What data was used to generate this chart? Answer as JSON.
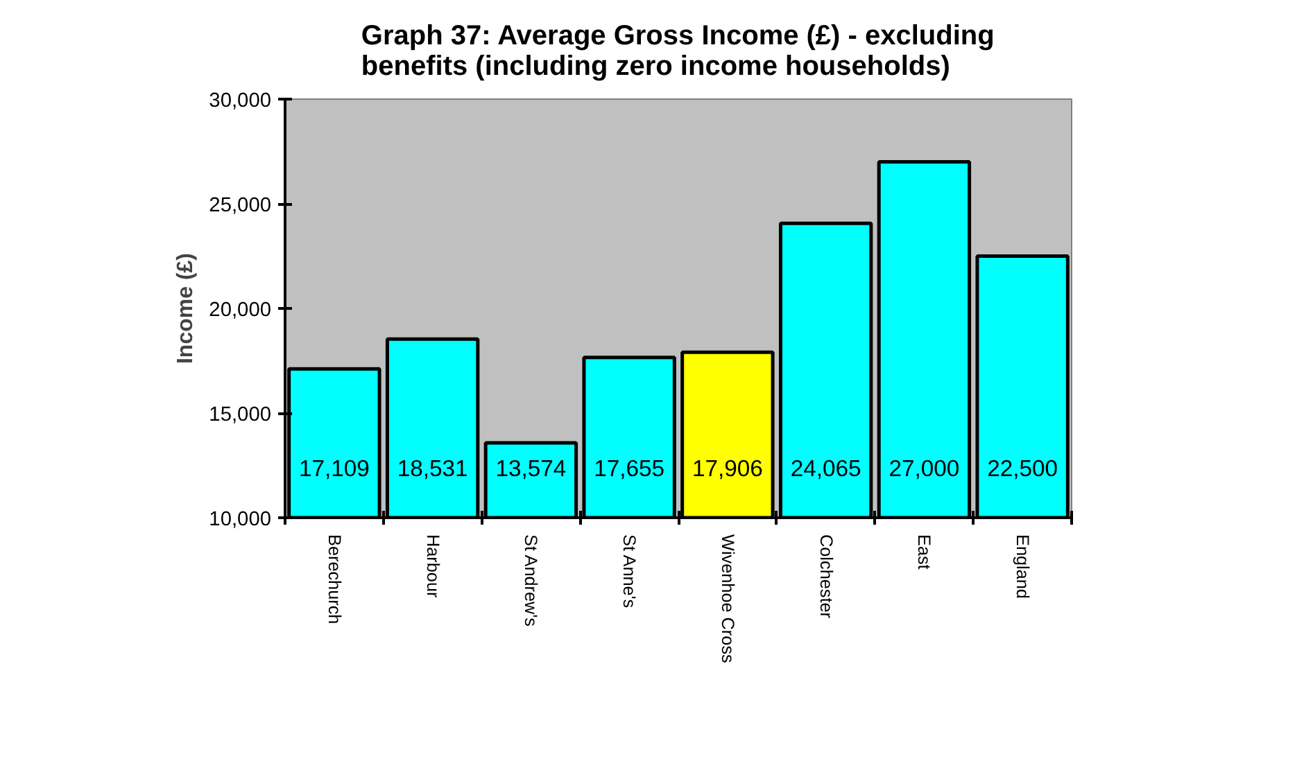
{
  "chart_data": {
    "type": "bar",
    "title": "Graph 37: Average Gross Income (£) - excluding benefits (including zero income households)",
    "ylabel": "Income (£)",
    "categories": [
      "Berechurch",
      "Harbour",
      "St Andrew's",
      "St Anne's",
      "Wivenhoe Cross",
      "Colchester",
      "East",
      "England"
    ],
    "values": [
      17109,
      18531,
      13574,
      17655,
      17906,
      24065,
      27000,
      22500
    ],
    "colors": [
      "#00ffff",
      "#00ffff",
      "#00ffff",
      "#00ffff",
      "#ffff00",
      "#00ffff",
      "#00ffff",
      "#00ffff"
    ],
    "ylim": [
      10000,
      30000
    ],
    "yticks": [
      {
        "value": 10000,
        "label": "10,000"
      },
      {
        "value": 15000,
        "label": "15,000"
      },
      {
        "value": 20000,
        "label": "20,000"
      },
      {
        "value": 25000,
        "label": "25,000"
      },
      {
        "value": 30000,
        "label": "30,000"
      }
    ],
    "value_labels": [
      "17,109",
      "18,531",
      "13,574",
      "17,655",
      "17,906",
      "24,065",
      "27,000",
      "22,500"
    ],
    "grid": false
  }
}
